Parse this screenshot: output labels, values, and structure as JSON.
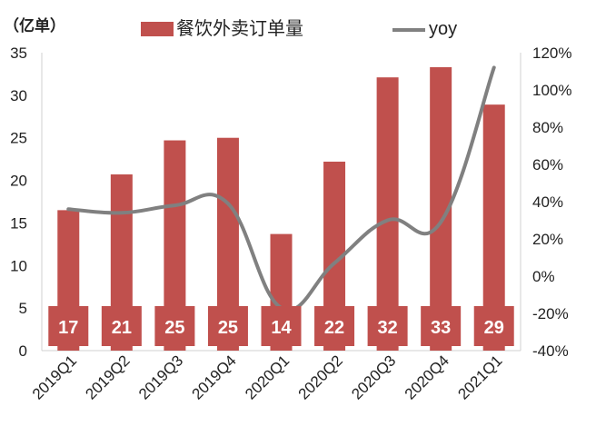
{
  "chart_data": {
    "type": "bar",
    "unit_label": "（亿单）",
    "categories": [
      "2019Q1",
      "2019Q2",
      "2019Q3",
      "2019Q4",
      "2020Q1",
      "2020Q2",
      "2020Q3",
      "2020Q4",
      "2021Q1"
    ],
    "series": [
      {
        "name": "餐饮外卖订单量",
        "type": "bar",
        "axis": "left",
        "color": "#c0504d",
        "values": [
          16.5,
          20.7,
          24.7,
          25.0,
          13.7,
          22.2,
          32.1,
          33.3,
          28.9
        ],
        "data_labels": [
          "17",
          "21",
          "25",
          "25",
          "14",
          "22",
          "32",
          "33",
          "29"
        ]
      },
      {
        "name": "yoy",
        "type": "line",
        "axis": "right",
        "color": "#808080",
        "values": [
          0.36,
          0.34,
          0.38,
          0.39,
          -0.17,
          0.07,
          0.3,
          0.29,
          1.12
        ]
      }
    ],
    "y_left": {
      "min": 0,
      "max": 35,
      "ticks": [
        "0",
        "5",
        "10",
        "15",
        "20",
        "25",
        "30",
        "35"
      ]
    },
    "y_right": {
      "min": -0.4,
      "max": 1.2,
      "ticks": [
        "-40%",
        "-20%",
        "0%",
        "20%",
        "40%",
        "60%",
        "80%",
        "100%",
        "120%"
      ]
    },
    "legend_position": "top",
    "grid": false
  }
}
